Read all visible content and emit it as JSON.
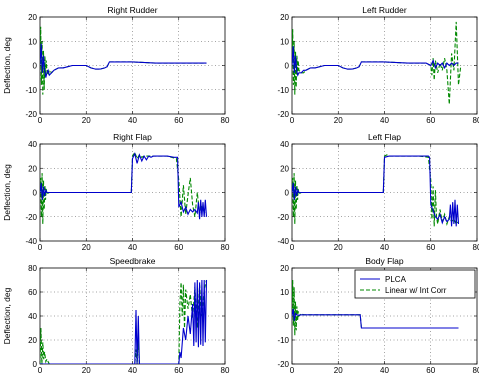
{
  "chart_data": [
    {
      "type": "line",
      "title": "Right Rudder",
      "ylabel": "Deflection, deg",
      "xlim": [
        0,
        80
      ],
      "ylim": [
        -20,
        20
      ],
      "xticks": [
        0,
        20,
        40,
        60,
        80
      ],
      "yticks": [
        -20,
        -10,
        0,
        10,
        20
      ],
      "grid": true,
      "series": [
        {
          "name": "PLCA",
          "color": "#0000cc",
          "dash": "solid",
          "x": [
            0,
            0.5,
            1,
            1.5,
            2,
            2.5,
            3,
            3.5,
            4,
            5,
            6,
            8,
            10,
            12,
            14,
            16,
            18,
            20,
            22,
            24,
            26,
            28,
            29,
            30,
            40,
            50,
            60,
            65,
            70,
            72
          ],
          "y": [
            0,
            9,
            -3,
            4,
            -2,
            -5,
            -3,
            -2,
            -4,
            -3,
            -2,
            -1,
            -1,
            -0.5,
            0,
            0,
            0,
            0,
            -1,
            -1.5,
            -1.5,
            -1,
            -0.5,
            1.5,
            1.5,
            1,
            1,
            1,
            1,
            1
          ]
        },
        {
          "name": "Linear w/ Int Corr",
          "color": "#008800",
          "dash": "dashed",
          "x": [
            0,
            0.3,
            0.6,
            0.9,
            1.2,
            1.5,
            1.8,
            2.1,
            2.4,
            2.7,
            3,
            3.5,
            4,
            5,
            6,
            8,
            10,
            14,
            18,
            20,
            22,
            24,
            26,
            28,
            29,
            30,
            40,
            50,
            60,
            65,
            70,
            72
          ],
          "y": [
            0,
            16,
            -8,
            10,
            -12,
            6,
            -10,
            4,
            -4,
            2,
            -2,
            -4,
            -2,
            -3,
            -2,
            -1,
            -1,
            0,
            0,
            0,
            -1,
            -1.5,
            -1.5,
            -1,
            -0.5,
            1.5,
            1.5,
            1,
            1,
            1,
            1,
            1
          ]
        }
      ]
    },
    {
      "type": "line",
      "title": "Left Rudder",
      "ylabel": "",
      "xlim": [
        0,
        80
      ],
      "ylim": [
        -20,
        20
      ],
      "xticks": [
        0,
        20,
        40,
        60,
        80
      ],
      "yticks": [
        -20,
        -10,
        0,
        10,
        20
      ],
      "grid": true,
      "series": [
        {
          "name": "PLCA",
          "color": "#0000cc",
          "dash": "solid",
          "x": [
            0,
            0.5,
            1,
            1.5,
            2,
            2.5,
            3,
            4,
            5,
            6,
            8,
            10,
            14,
            18,
            20,
            22,
            24,
            26,
            28,
            29,
            30,
            40,
            50,
            58,
            60,
            61,
            62,
            63,
            64,
            65,
            66,
            67,
            68,
            69,
            70,
            71,
            72
          ],
          "y": [
            0,
            8,
            -3,
            4,
            -2,
            -4,
            -3,
            -3,
            -2,
            -2,
            -1,
            -1,
            0,
            0,
            0,
            -1,
            -1.5,
            -1.5,
            -1,
            -0.5,
            1.5,
            1.5,
            1,
            1,
            0,
            2,
            -1,
            1,
            0,
            1,
            -1,
            1,
            0,
            1,
            0,
            1,
            1
          ]
        },
        {
          "name": "Linear w/ Int Corr",
          "color": "#008800",
          "dash": "dashed",
          "x": [
            0,
            0.3,
            0.6,
            0.9,
            1.2,
            1.5,
            1.8,
            2.1,
            2.4,
            2.7,
            3,
            4,
            5,
            6,
            8,
            10,
            14,
            18,
            20,
            22,
            24,
            26,
            28,
            29,
            30,
            40,
            50,
            58,
            60,
            60.5,
            61,
            61.5,
            62,
            63,
            64,
            65,
            66,
            67,
            68,
            69,
            70,
            71,
            72,
            73
          ],
          "y": [
            0,
            15,
            -8,
            10,
            -12,
            6,
            -9,
            4,
            -4,
            2,
            -2,
            -3,
            -3,
            -2,
            -1,
            -1,
            0,
            0,
            0,
            -1,
            -1.5,
            -1.5,
            -1,
            -0.5,
            1.5,
            1.5,
            1,
            1,
            0,
            -4,
            3,
            -6,
            2,
            -3,
            1,
            -2,
            3,
            -2,
            -16,
            5,
            -2,
            18,
            -8,
            0
          ]
        }
      ]
    },
    {
      "type": "line",
      "title": "Right Flap",
      "ylabel": "Deflection, deg",
      "xlim": [
        0,
        80
      ],
      "ylim": [
        -40,
        40
      ],
      "xticks": [
        0,
        20,
        40,
        60,
        80
      ],
      "yticks": [
        -40,
        -20,
        0,
        20,
        40
      ],
      "grid": true,
      "series": [
        {
          "name": "PLCA",
          "color": "#0000cc",
          "dash": "solid",
          "x": [
            0,
            0.5,
            1,
            1.5,
            2,
            2.5,
            3,
            4,
            10,
            20,
            30,
            39.5,
            40,
            41,
            42,
            43,
            44,
            45,
            46,
            47,
            48,
            49,
            50,
            52,
            55,
            58,
            59.5,
            60,
            61,
            62,
            63,
            64,
            65,
            66,
            67,
            68,
            68.5,
            69,
            69.5,
            70,
            70.5,
            71,
            71.5,
            72
          ],
          "y": [
            0,
            8,
            -6,
            5,
            -3,
            2,
            0,
            0,
            0,
            0,
            0,
            0,
            28,
            32,
            24,
            31,
            26,
            30,
            27,
            30,
            29,
            30,
            30,
            30,
            30,
            29,
            29,
            -12,
            -8,
            -16,
            -12,
            -18,
            -14,
            -16,
            -14,
            -17,
            -8,
            -22,
            -6,
            -20,
            -8,
            -20,
            -6,
            -20
          ]
        },
        {
          "name": "Linear w/ Int Corr",
          "color": "#008800",
          "dash": "dashed",
          "x": [
            0,
            0.3,
            0.6,
            0.9,
            1.2,
            1.5,
            1.8,
            2.1,
            2.4,
            2.7,
            3,
            4,
            10,
            20,
            30,
            39.5,
            40,
            41,
            42,
            43,
            44,
            45,
            50,
            55,
            59,
            60,
            61,
            62,
            63,
            64,
            65,
            66,
            67,
            68,
            69,
            70,
            71,
            72
          ],
          "y": [
            0,
            12,
            -20,
            16,
            -26,
            10,
            -14,
            6,
            -6,
            3,
            -1,
            0,
            0,
            0,
            0,
            0,
            30,
            33,
            28,
            31,
            29,
            30,
            30,
            30,
            28,
            10,
            -20,
            6,
            -18,
            -2,
            12,
            -10,
            -20,
            0,
            -18,
            -12,
            -16,
            -18
          ]
        }
      ]
    },
    {
      "type": "line",
      "title": "Left Flap",
      "ylabel": "",
      "xlim": [
        0,
        80
      ],
      "ylim": [
        -40,
        40
      ],
      "xticks": [
        0,
        20,
        40,
        60,
        80
      ],
      "yticks": [
        -40,
        -20,
        0,
        20,
        40
      ],
      "grid": true,
      "series": [
        {
          "name": "PLCA",
          "color": "#0000cc",
          "dash": "solid",
          "x": [
            0,
            0.5,
            1,
            1.5,
            2,
            2.5,
            3,
            4,
            10,
            20,
            30,
            39.5,
            40,
            42,
            45,
            50,
            55,
            59,
            59.5,
            60,
            61,
            62,
            63,
            64,
            65,
            66,
            67,
            68,
            68.5,
            69,
            69.5,
            70,
            70.5,
            71,
            71.5,
            72
          ],
          "y": [
            0,
            8,
            -6,
            5,
            -3,
            2,
            0,
            0,
            0,
            0,
            0,
            0,
            29,
            30,
            30,
            30,
            30,
            30,
            29,
            -10,
            -15,
            -20,
            -22,
            -18,
            -25,
            -20,
            -24,
            -22,
            -10,
            -28,
            -8,
            -26,
            -6,
            -28,
            -10,
            -26
          ]
        },
        {
          "name": "Linear w/ Int Corr",
          "color": "#008800",
          "dash": "dashed",
          "x": [
            0,
            0.3,
            0.6,
            0.9,
            1.2,
            1.5,
            1.8,
            2.1,
            2.4,
            2.7,
            3,
            4,
            10,
            20,
            30,
            39.5,
            40,
            41,
            42,
            45,
            50,
            55,
            59,
            60,
            60.5,
            61,
            61.5,
            62,
            62.5,
            63,
            64,
            65,
            66,
            67,
            68,
            69,
            70,
            71,
            72
          ],
          "y": [
            0,
            12,
            -20,
            16,
            -26,
            10,
            -14,
            6,
            -6,
            3,
            -1,
            0,
            0,
            0,
            0,
            0,
            30,
            31,
            30,
            30,
            30,
            30,
            29,
            10,
            -22,
            5,
            -28,
            2,
            -20,
            -26,
            -14,
            -24,
            -18,
            -26,
            -20,
            -24,
            -22,
            -26,
            -24
          ]
        }
      ]
    },
    {
      "type": "line",
      "title": "Speedbrake",
      "ylabel": "Deflection, deg",
      "xlim": [
        0,
        80
      ],
      "ylim": [
        0,
        80
      ],
      "xticks": [
        0,
        20,
        40,
        60,
        80
      ],
      "yticks": [
        0,
        20,
        40,
        60,
        80
      ],
      "grid": true,
      "series": [
        {
          "name": "PLCA",
          "color": "#0000cc",
          "dash": "solid",
          "x": [
            0,
            1,
            2,
            10,
            20,
            30,
            40,
            41,
            41.5,
            42,
            42.5,
            43,
            50,
            55,
            60,
            60.5,
            61,
            62,
            63,
            64,
            65,
            66,
            66.5,
            67,
            67.5,
            68,
            68.5,
            69,
            69.5,
            70,
            70.5,
            71,
            71.5,
            72
          ],
          "y": [
            0,
            0,
            0,
            0,
            0,
            0,
            0,
            0,
            45,
            0,
            40,
            0,
            0,
            0,
            0,
            10,
            5,
            30,
            20,
            40,
            25,
            50,
            15,
            68,
            18,
            70,
            14,
            68,
            16,
            70,
            15,
            70,
            18,
            70
          ]
        },
        {
          "name": "Linear w/ Int Corr",
          "color": "#008800",
          "dash": "dashed",
          "x": [
            0,
            0.4,
            0.8,
            1.2,
            1.6,
            2,
            2.5,
            3,
            4,
            10,
            20,
            30,
            40,
            41,
            41.5,
            42,
            42.5,
            43,
            50,
            55,
            60,
            60.5,
            61,
            61.5,
            62,
            62.5,
            63,
            64,
            65,
            66,
            67,
            68,
            69,
            70,
            71,
            72
          ],
          "y": [
            0,
            30,
            0,
            18,
            4,
            10,
            2,
            4,
            0,
            0,
            0,
            0,
            0,
            0,
            12,
            0,
            20,
            0,
            0,
            0,
            0,
            50,
            68,
            40,
            66,
            30,
            62,
            46,
            58,
            38,
            64,
            30,
            66,
            40,
            62,
            70
          ]
        }
      ]
    },
    {
      "type": "line",
      "title": "Body Flap",
      "ylabel": "",
      "xlim": [
        0,
        80
      ],
      "ylim": [
        -20,
        20
      ],
      "xticks": [
        0,
        20,
        40,
        60,
        80
      ],
      "yticks": [
        -20,
        -10,
        0,
        10,
        20
      ],
      "grid": true,
      "legend": {
        "position": "top-right",
        "entries": [
          "PLCA",
          "Linear w/ Int Corr"
        ]
      },
      "series": [
        {
          "name": "PLCA",
          "color": "#0000cc",
          "dash": "solid",
          "x": [
            0,
            0.5,
            1,
            1.5,
            2,
            3,
            4,
            5,
            10,
            15,
            20,
            25,
            29.5,
            30,
            40,
            50,
            60,
            65,
            70,
            72
          ],
          "y": [
            0,
            3,
            -2,
            1,
            0.5,
            0.3,
            0.5,
            0.5,
            0.5,
            0.5,
            0.5,
            0.5,
            0.5,
            -5,
            -5,
            -5,
            -5,
            -5,
            -5,
            -5
          ]
        },
        {
          "name": "Linear w/ Int Corr",
          "color": "#008800",
          "dash": "dashed",
          "x": [
            0,
            0.3,
            0.6,
            0.9,
            1.2,
            1.5,
            1.8,
            2.1,
            2.4,
            2.7,
            3,
            4,
            5,
            10,
            20,
            29.5,
            30,
            40,
            50,
            60,
            72
          ],
          "y": [
            0,
            15,
            -4,
            12,
            -8,
            6,
            -6,
            4,
            -2,
            2,
            0,
            1,
            0.5,
            0.5,
            0.5,
            0.5,
            -5,
            -5,
            -5,
            -5,
            -5
          ]
        }
      ]
    }
  ]
}
